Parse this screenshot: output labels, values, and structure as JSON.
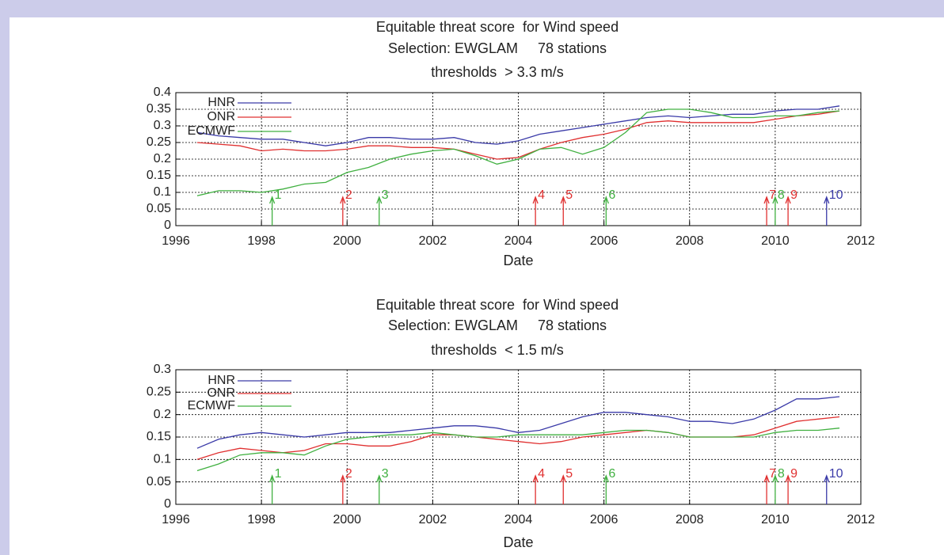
{
  "chart_data": [
    {
      "type": "line",
      "title": "Equitable threat score  for Wind speed",
      "subtitle": "Selection: EWGLAM     78 stations",
      "threshold": "thresholds  > 3.3 m/s",
      "x_label": "Date",
      "x": [
        1996.5,
        1997,
        1997.5,
        1998,
        1998.5,
        1999,
        1999.5,
        2000,
        2000.5,
        2001,
        2001.5,
        2002,
        2002.5,
        2003,
        2003.5,
        2004,
        2004.5,
        2005,
        2005.5,
        2006,
        2006.5,
        2007,
        2007.5,
        2008,
        2008.5,
        2009,
        2009.5,
        2010,
        2010.5,
        2011,
        2011.5
      ],
      "series": [
        {
          "name": "HNR",
          "color": "#3a3aa8",
          "values": [
            0.28,
            0.27,
            0.265,
            0.26,
            0.26,
            0.25,
            0.24,
            0.25,
            0.265,
            0.265,
            0.26,
            0.26,
            0.265,
            0.25,
            0.245,
            0.255,
            0.275,
            0.285,
            0.295,
            0.305,
            0.315,
            0.325,
            0.33,
            0.325,
            0.33,
            0.335,
            0.335,
            0.345,
            0.35,
            0.35,
            0.36
          ]
        },
        {
          "name": "ONR",
          "color": "#e03030",
          "values": [
            0.25,
            0.245,
            0.24,
            0.225,
            0.23,
            0.225,
            0.225,
            0.23,
            0.24,
            0.24,
            0.235,
            0.235,
            0.23,
            0.215,
            0.2,
            0.205,
            0.23,
            0.25,
            0.265,
            0.275,
            0.29,
            0.31,
            0.315,
            0.31,
            0.31,
            0.31,
            0.31,
            0.32,
            0.33,
            0.335,
            0.345
          ]
        },
        {
          "name": "ECMWF",
          "color": "#40b040",
          "values": [
            0.09,
            0.105,
            0.105,
            0.1,
            0.11,
            0.125,
            0.13,
            0.16,
            0.175,
            0.2,
            0.215,
            0.225,
            0.23,
            0.21,
            0.185,
            0.2,
            0.23,
            0.235,
            0.215,
            0.235,
            0.28,
            0.34,
            0.35,
            0.35,
            0.34,
            0.325,
            0.325,
            0.33,
            0.33,
            0.34,
            0.345
          ]
        }
      ],
      "events": [
        {
          "x": 1998.25,
          "label": "1",
          "color": "#40b040"
        },
        {
          "x": 1999.9,
          "label": "2",
          "color": "#e03030"
        },
        {
          "x": 2000.75,
          "label": "3",
          "color": "#40b040"
        },
        {
          "x": 2004.4,
          "label": "4",
          "color": "#e03030"
        },
        {
          "x": 2005.05,
          "label": "5",
          "color": "#e03030"
        },
        {
          "x": 2006.05,
          "label": "6",
          "color": "#40b040"
        },
        {
          "x": 2009.8,
          "label": "7",
          "color": "#e03030"
        },
        {
          "x": 2010.0,
          "label": "8",
          "color": "#40b040"
        },
        {
          "x": 2010.3,
          "label": "9",
          "color": "#e03030"
        },
        {
          "x": 2011.2,
          "label": "10",
          "color": "#3a3aa8"
        }
      ],
      "xlim": [
        1996,
        2012
      ],
      "xticks": [
        1996,
        1998,
        2000,
        2002,
        2004,
        2006,
        2008,
        2010,
        2012
      ],
      "ylim": [
        0,
        0.4
      ],
      "yticks": [
        0,
        0.05,
        0.1,
        0.15,
        0.2,
        0.25,
        0.3,
        0.35,
        0.4
      ],
      "grid": true,
      "legend": "top-left"
    },
    {
      "type": "line",
      "title": "Equitable threat score  for Wind speed",
      "subtitle": "Selection: EWGLAM     78 stations",
      "threshold": "thresholds  < 1.5 m/s",
      "x_label": "Date",
      "x": [
        1996.5,
        1997,
        1997.5,
        1998,
        1998.5,
        1999,
        1999.5,
        2000,
        2000.5,
        2001,
        2001.5,
        2002,
        2002.5,
        2003,
        2003.5,
        2004,
        2004.5,
        2005,
        2005.5,
        2006,
        2006.5,
        2007,
        2007.5,
        2008,
        2008.5,
        2009,
        2009.5,
        2010,
        2010.5,
        2011,
        2011.5
      ],
      "series": [
        {
          "name": "HNR",
          "color": "#3a3aa8",
          "values": [
            0.125,
            0.145,
            0.155,
            0.16,
            0.155,
            0.15,
            0.155,
            0.16,
            0.16,
            0.16,
            0.165,
            0.17,
            0.175,
            0.175,
            0.17,
            0.16,
            0.165,
            0.18,
            0.195,
            0.205,
            0.205,
            0.2,
            0.195,
            0.185,
            0.185,
            0.18,
            0.19,
            0.21,
            0.235,
            0.235,
            0.24
          ]
        },
        {
          "name": "ONR",
          "color": "#e03030",
          "values": [
            0.1,
            0.115,
            0.125,
            0.12,
            0.115,
            0.12,
            0.135,
            0.135,
            0.13,
            0.13,
            0.14,
            0.155,
            0.155,
            0.15,
            0.145,
            0.14,
            0.135,
            0.14,
            0.15,
            0.155,
            0.16,
            0.165,
            0.16,
            0.15,
            0.15,
            0.15,
            0.155,
            0.17,
            0.185,
            0.19,
            0.195
          ]
        },
        {
          "name": "ECMWF",
          "color": "#40b040",
          "values": [
            0.075,
            0.09,
            0.11,
            0.115,
            0.115,
            0.11,
            0.13,
            0.145,
            0.15,
            0.155,
            0.155,
            0.16,
            0.155,
            0.15,
            0.15,
            0.155,
            0.155,
            0.155,
            0.155,
            0.16,
            0.165,
            0.165,
            0.16,
            0.15,
            0.15,
            0.15,
            0.15,
            0.16,
            0.165,
            0.165,
            0.17
          ]
        }
      ],
      "events": [
        {
          "x": 1998.25,
          "label": "1",
          "color": "#40b040"
        },
        {
          "x": 1999.9,
          "label": "2",
          "color": "#e03030"
        },
        {
          "x": 2000.75,
          "label": "3",
          "color": "#40b040"
        },
        {
          "x": 2004.4,
          "label": "4",
          "color": "#e03030"
        },
        {
          "x": 2005.05,
          "label": "5",
          "color": "#e03030"
        },
        {
          "x": 2006.05,
          "label": "6",
          "color": "#40b040"
        },
        {
          "x": 2009.8,
          "label": "7",
          "color": "#e03030"
        },
        {
          "x": 2010.0,
          "label": "8",
          "color": "#40b040"
        },
        {
          "x": 2010.3,
          "label": "9",
          "color": "#e03030"
        },
        {
          "x": 2011.2,
          "label": "10",
          "color": "#3a3aa8"
        }
      ],
      "xlim": [
        1996,
        2012
      ],
      "xticks": [
        1996,
        1998,
        2000,
        2002,
        2004,
        2006,
        2008,
        2010,
        2012
      ],
      "ylim": [
        0,
        0.3
      ],
      "yticks": [
        0,
        0.05,
        0.1,
        0.15,
        0.2,
        0.25,
        0.3
      ],
      "grid": true,
      "legend": "top-left"
    }
  ]
}
